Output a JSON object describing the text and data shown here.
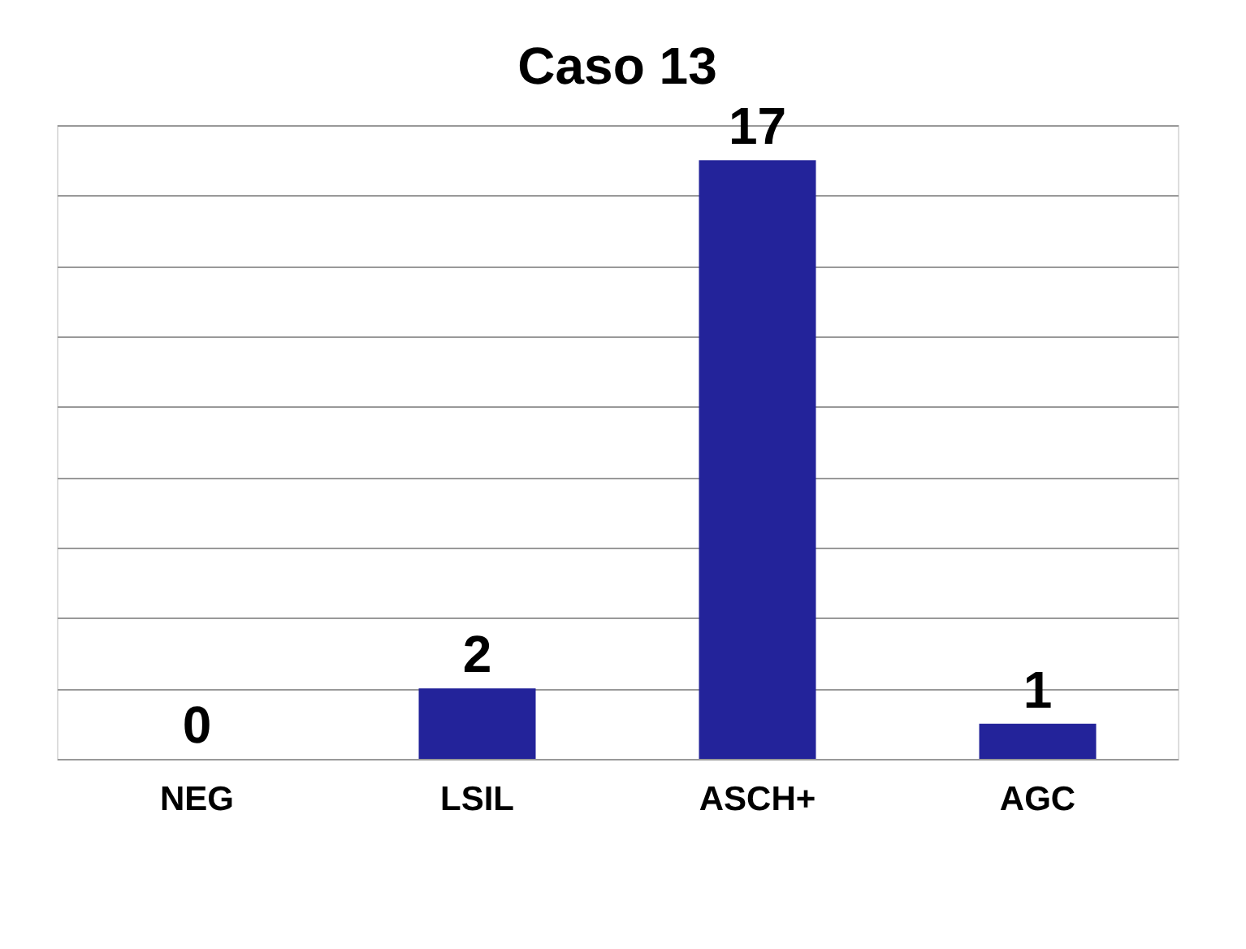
{
  "chart_data": {
    "type": "bar",
    "title": "Caso 13",
    "categories": [
      "NEG",
      "LSIL",
      "ASCH+",
      "AGC"
    ],
    "values": [
      0,
      2,
      17,
      1
    ],
    "color": "#23239a",
    "ylim": [
      0,
      18
    ],
    "yticks": [
      {
        "value": 0,
        "label": null
      },
      {
        "value": 2,
        "label": null
      },
      {
        "value": 4,
        "label": null
      },
      {
        "value": 6,
        "label": null
      },
      {
        "value": 8,
        "label": null
      },
      {
        "value": 10,
        "label": null
      },
      {
        "value": 12,
        "label": null
      },
      {
        "value": 14,
        "label": null
      },
      {
        "value": 16,
        "label": null
      },
      {
        "value": 18,
        "label": null
      }
    ],
    "grid": "y",
    "tick_labels": "x",
    "data_labels": true
  }
}
